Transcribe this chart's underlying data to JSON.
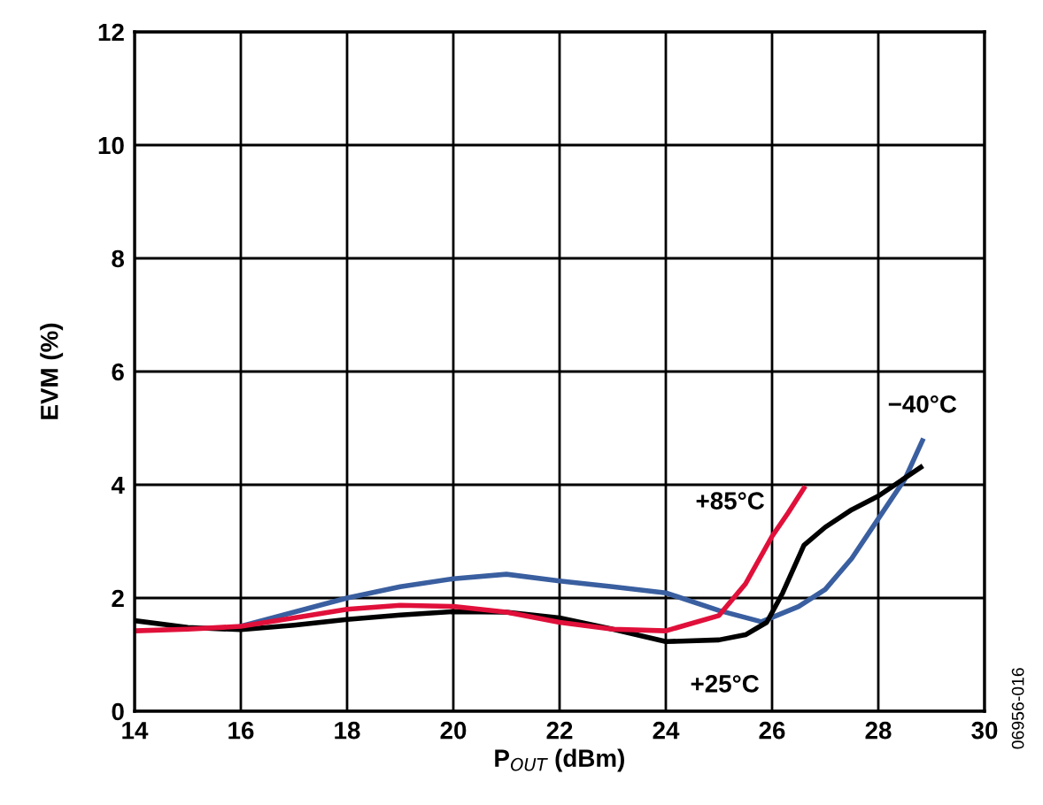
{
  "chart_data": {
    "type": "line",
    "xlabel": "P$_{OUT}$ (dBm)",
    "ylabel": "EVM (%)",
    "xlim": [
      14,
      30
    ],
    "xticks": [
      14,
      16,
      18,
      20,
      22,
      24,
      26,
      28,
      30
    ],
    "ylim": [
      0,
      12
    ],
    "yticks": [
      0,
      2,
      4,
      6,
      8,
      10,
      12
    ],
    "grid": true,
    "marker": "none",
    "line_style": "solid",
    "series": [
      {
        "name": "−40°C",
        "color": "#3a5fa0",
        "x": [
          16,
          17,
          18,
          19,
          20,
          21,
          22,
          23,
          24,
          25,
          25.8,
          26.5,
          27,
          27.5,
          28,
          28.5,
          28.83
        ],
        "values": [
          1.5,
          1.75,
          2.0,
          2.2,
          2.34,
          2.42,
          2.3,
          2.2,
          2.09,
          1.78,
          1.58,
          1.85,
          2.15,
          2.7,
          3.4,
          4.1,
          4.78
        ]
      },
      {
        "name": "+25°C",
        "color": "#000000",
        "x": [
          14,
          15,
          16,
          17,
          18,
          19,
          20,
          21,
          22,
          23,
          24,
          25,
          25.5,
          25.9,
          26.2,
          26.6,
          27,
          27.5,
          28,
          28.8
        ],
        "values": [
          1.6,
          1.48,
          1.44,
          1.52,
          1.62,
          1.7,
          1.76,
          1.75,
          1.65,
          1.45,
          1.23,
          1.26,
          1.35,
          1.57,
          2.09,
          2.93,
          3.25,
          3.56,
          3.8,
          4.31
        ]
      },
      {
        "name": "+85°C",
        "color": "#e0103a",
        "x": [
          14,
          15,
          16,
          17,
          18,
          19,
          20,
          21,
          22,
          23,
          24,
          25,
          25.5,
          26,
          26.3,
          26.6
        ],
        "values": [
          1.42,
          1.45,
          1.5,
          1.65,
          1.8,
          1.87,
          1.85,
          1.75,
          1.57,
          1.45,
          1.42,
          1.69,
          2.25,
          3.09,
          3.5,
          3.94
        ]
      }
    ],
    "annotations": [
      "06956-016"
    ]
  }
}
